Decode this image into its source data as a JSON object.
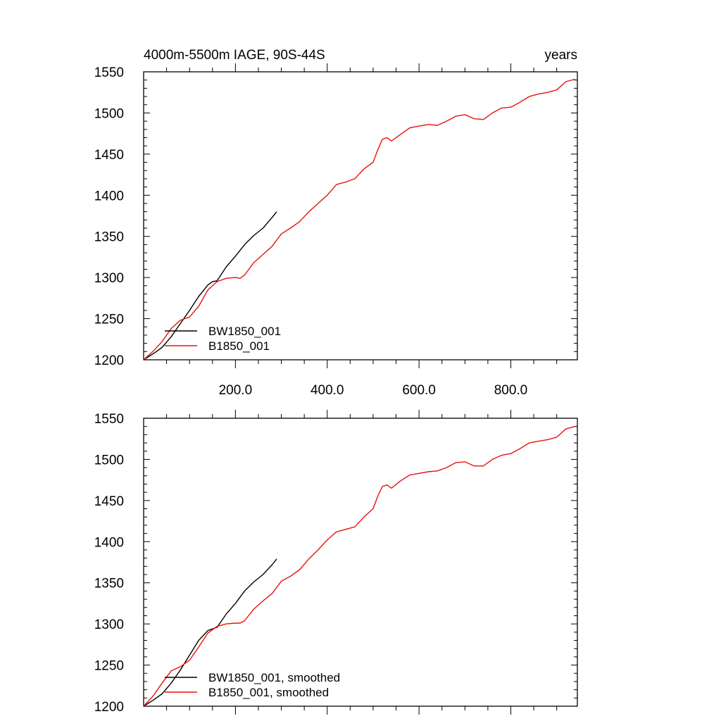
{
  "colors": {
    "BW1850_001": "#000000",
    "B1850_001": "#e8120f"
  },
  "chart_data": [
    {
      "type": "line",
      "title_left": "4000m-5500m IAGE, 90S-44S",
      "title_right": "years",
      "xlim": [
        0,
        945
      ],
      "ylim": [
        1200,
        1550
      ],
      "x_ticks": [
        200,
        400,
        600,
        800
      ],
      "x_tick_labels": [
        "200.0",
        "400.0",
        "600.0",
        "800.0"
      ],
      "y_ticks": [
        1200,
        1250,
        1300,
        1350,
        1400,
        1450,
        1500,
        1550
      ],
      "y_tick_labels": [
        "1200",
        "1250",
        "1300",
        "1350",
        "1400",
        "1450",
        "1500",
        "1550"
      ],
      "legend": [
        "BW1850_001",
        "B1850_001"
      ],
      "legend_position": "bottom-left",
      "series": [
        {
          "name": "BW1850_001",
          "color": "#000000",
          "smoothed": false,
          "x": [
            0,
            20,
            40,
            60,
            80,
            100,
            120,
            140,
            150,
            160,
            180,
            200,
            220,
            240,
            260,
            280,
            290
          ],
          "y": [
            1200,
            1207,
            1215,
            1228,
            1244,
            1260,
            1277,
            1291,
            1295,
            1296,
            1313,
            1326,
            1340,
            1351,
            1360,
            1373,
            1380
          ]
        },
        {
          "name": "B1850_001",
          "color": "#e8120f",
          "smoothed": false,
          "x": [
            0,
            20,
            40,
            60,
            80,
            100,
            120,
            140,
            160,
            180,
            200,
            210,
            220,
            240,
            260,
            280,
            300,
            320,
            340,
            360,
            380,
            400,
            420,
            440,
            460,
            480,
            500,
            510,
            520,
            530,
            540,
            560,
            580,
            600,
            620,
            640,
            660,
            680,
            700,
            720,
            740,
            760,
            780,
            800,
            820,
            840,
            860,
            880,
            900,
            920,
            940
          ],
          "y": [
            1200,
            1210,
            1222,
            1238,
            1248,
            1252,
            1265,
            1285,
            1295,
            1299,
            1300,
            1299,
            1303,
            1318,
            1328,
            1338,
            1353,
            1360,
            1368,
            1380,
            1390,
            1400,
            1413,
            1416,
            1420,
            1432,
            1440,
            1455,
            1468,
            1470,
            1466,
            1474,
            1482,
            1484,
            1486,
            1485,
            1490,
            1496,
            1498,
            1493,
            1492,
            1500,
            1506,
            1507,
            1513,
            1520,
            1523,
            1525,
            1528,
            1538,
            1541
          ]
        }
      ]
    },
    {
      "type": "line",
      "title_left": "",
      "title_right": "",
      "xlim": [
        0,
        945
      ],
      "ylim": [
        1200,
        1550
      ],
      "x_ticks": [
        200,
        400,
        600,
        800
      ],
      "y_ticks": [
        1200,
        1250,
        1300,
        1350,
        1400,
        1450,
        1500,
        1550
      ],
      "y_tick_labels": [
        "1200",
        "1250",
        "1300",
        "1350",
        "1400",
        "1450",
        "1500",
        "1550"
      ],
      "legend": [
        "BW1850_001, smoothed",
        "B1850_001, smoothed"
      ],
      "legend_position": "bottom-left",
      "series": [
        {
          "name": "BW1850_001, smoothed",
          "color": "#000000",
          "smoothed": true,
          "x": [
            0,
            20,
            40,
            60,
            80,
            100,
            120,
            140,
            150,
            160,
            180,
            200,
            220,
            240,
            260,
            280,
            290
          ],
          "y": [
            1200,
            1207,
            1215,
            1228,
            1244,
            1262,
            1280,
            1292,
            1294,
            1296,
            1312,
            1325,
            1340,
            1351,
            1360,
            1372,
            1379
          ]
        },
        {
          "name": "B1850_001, smoothed",
          "color": "#e8120f",
          "smoothed": true,
          "x": [
            0,
            20,
            40,
            60,
            80,
            100,
            120,
            140,
            160,
            180,
            200,
            210,
            220,
            240,
            260,
            280,
            300,
            320,
            340,
            360,
            380,
            400,
            420,
            440,
            460,
            480,
            500,
            510,
            520,
            530,
            540,
            560,
            580,
            600,
            620,
            640,
            660,
            680,
            700,
            720,
            740,
            760,
            780,
            800,
            820,
            840,
            860,
            880,
            900,
            920,
            940
          ],
          "y": [
            1200,
            1212,
            1228,
            1243,
            1248,
            1256,
            1272,
            1289,
            1297,
            1300,
            1301,
            1301,
            1304,
            1318,
            1328,
            1337,
            1352,
            1358,
            1366,
            1379,
            1390,
            1402,
            1412,
            1415,
            1418,
            1430,
            1440,
            1455,
            1467,
            1469,
            1465,
            1474,
            1481,
            1483,
            1485,
            1486,
            1490,
            1496,
            1497,
            1492,
            1492,
            1500,
            1505,
            1507,
            1513,
            1520,
            1522,
            1524,
            1527,
            1537,
            1540
          ]
        }
      ]
    }
  ]
}
